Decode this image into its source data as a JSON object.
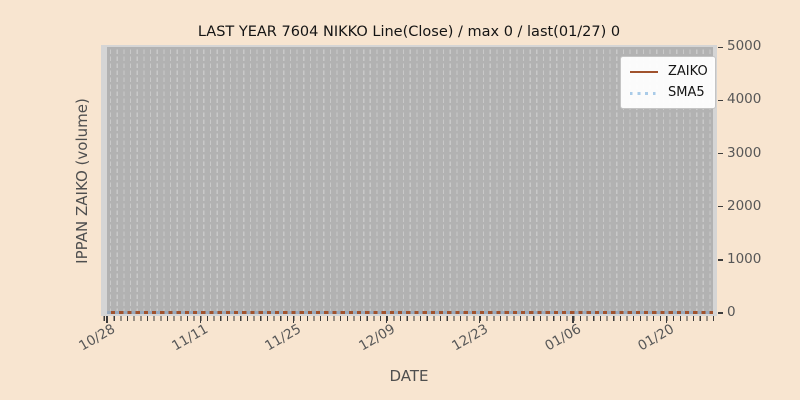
{
  "title": "LAST YEAR 7604 NIKKO Line(Close) / max 0 / last(01/27) 0",
  "axes": {
    "ylabel": "IPPAN ZAIKO (volume)",
    "xlabel": "DATE",
    "yticks": [
      {
        "value": 5000,
        "label": "5000"
      },
      {
        "value": 4000,
        "label": "4000"
      },
      {
        "value": 3000,
        "label": "3000"
      },
      {
        "value": 2000,
        "label": "2000"
      },
      {
        "value": 1000,
        "label": "1000"
      },
      {
        "value": 0,
        "label": "0"
      }
    ],
    "xticks": [
      "10/28",
      "11/11",
      "11/25",
      "12/09",
      "12/23",
      "01/06",
      "01/20"
    ]
  },
  "legend": {
    "items": [
      {
        "label": "ZAIKO",
        "style": "solid",
        "color": "#a0522d"
      },
      {
        "label": "SMA5",
        "style": "dotted",
        "color": "#a9cbe8"
      }
    ]
  },
  "colors": {
    "figure_background": "#f8e5d0",
    "plot_background": "#d5d5d5",
    "data_band_background": "#b2b2b2",
    "gridline": "#c9c9c9",
    "zaiko_line": "#a0522d",
    "sma5_line": "#a9cbe8",
    "tick_text": "#575757",
    "axis_label_text": "#4f4f4f",
    "title_text": "#141414"
  },
  "chart_data": {
    "type": "line",
    "title": "LAST YEAR 7604 NIKKO Line(Close) / max 0 / last(01/27) 0",
    "xlabel": "DATE",
    "ylabel": "IPPAN ZAIKO (volume)",
    "x_range": [
      "10/28",
      "01/27"
    ],
    "x_tick_labels": [
      "10/28",
      "11/11",
      "11/25",
      "12/09",
      "12/23",
      "01/06",
      "01/20"
    ],
    "y_ticks": [
      0,
      1000,
      2000,
      3000,
      4000,
      5000
    ],
    "ylim": [
      0,
      5000
    ],
    "grid": "daily vertical dashed gridlines, no horizontal gridlines",
    "legend_position": "upper right",
    "series": [
      {
        "name": "ZAIKO",
        "style": "solid",
        "color": "#a0522d",
        "note": "constant 0 for every day from 10/28 through 01/27",
        "x": [
          "10/28",
          "11/11",
          "11/25",
          "12/09",
          "12/23",
          "01/06",
          "01/20",
          "01/27"
        ],
        "values": [
          0,
          0,
          0,
          0,
          0,
          0,
          0,
          0
        ]
      },
      {
        "name": "SMA5",
        "style": "dotted",
        "color": "#a9cbe8",
        "note": "5-day moving average, constant 0 across full range",
        "x": [
          "10/28",
          "11/11",
          "11/25",
          "12/09",
          "12/23",
          "01/06",
          "01/20",
          "01/27"
        ],
        "values": [
          0,
          0,
          0,
          0,
          0,
          0,
          0,
          0
        ]
      }
    ],
    "annotations": {
      "max_value": 0,
      "last_date": "01/27",
      "last_value": 0
    }
  }
}
